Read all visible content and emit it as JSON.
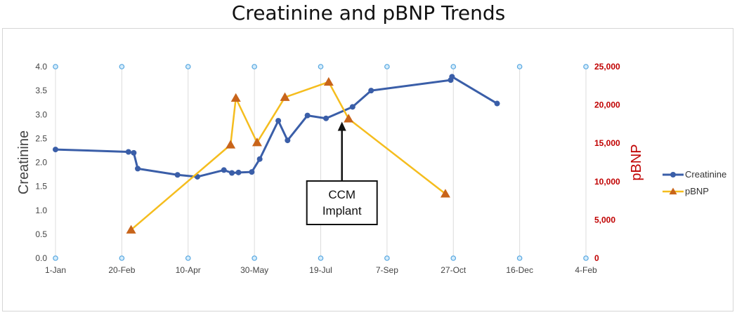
{
  "chart_data": {
    "type": "line",
    "title": "Creatinine and pBNP Trends",
    "ylabel_left": "Creatinine",
    "ylabel_right": "pBNP",
    "x_ticks": [
      "1-Jan",
      "20-Feb",
      "10-Apr",
      "30-May",
      "19-Jul",
      "7-Sep",
      "27-Oct",
      "16-Dec",
      "4-Feb"
    ],
    "xlim_days": [
      0,
      400
    ],
    "y_left_ticks": [
      "0.0",
      "0.5",
      "1.0",
      "1.5",
      "2.0",
      "2.5",
      "3.0",
      "3.5",
      "4.0"
    ],
    "ylim_left": [
      0,
      4
    ],
    "y_right_ticks": [
      "0",
      "5,000",
      "10,000",
      "15,000",
      "20,000",
      "25,000"
    ],
    "ylim_right": [
      0,
      25000
    ],
    "grid": "vertical",
    "legend_position": "right",
    "series": [
      {
        "name": "Creatinine",
        "axis": "left",
        "color": "#3a5ea8",
        "marker": "circle",
        "points": [
          {
            "x": "1-Jan",
            "y": 2.27
          },
          {
            "x": "25-Feb",
            "y": 2.22
          },
          {
            "x": "1-Mar",
            "y": 2.2
          },
          {
            "x": "4-Mar",
            "y": 1.87
          },
          {
            "x": "3-Apr",
            "y": 1.74
          },
          {
            "x": "18-Apr",
            "y": 1.7
          },
          {
            "x": "8-May",
            "y": 1.84
          },
          {
            "x": "14-May",
            "y": 1.78
          },
          {
            "x": "19-May",
            "y": 1.79
          },
          {
            "x": "29-May",
            "y": 1.8
          },
          {
            "x": "4-Jun",
            "y": 2.07
          },
          {
            "x": "18-Jun",
            "y": 2.87
          },
          {
            "x": "25-Jun",
            "y": 2.46
          },
          {
            "x": "10-Jul",
            "y": 2.98
          },
          {
            "x": "24-Jul",
            "y": 2.92
          },
          {
            "x": "13-Aug",
            "y": 3.16
          },
          {
            "x": "27-Aug",
            "y": 3.5
          },
          {
            "x": "26-Oct",
            "y": 3.72
          },
          {
            "x": "27-Oct",
            "y": 3.79
          },
          {
            "x": "30-Nov",
            "y": 3.23
          }
        ]
      },
      {
        "name": "pBNP",
        "axis": "right",
        "color": "#f5bd1e",
        "marker_color": "#c8641a",
        "marker": "triangle",
        "points": [
          {
            "x": "27-Feb",
            "y": 3700
          },
          {
            "x": "13-May",
            "y": 14800
          },
          {
            "x": "17-May",
            "y": 20900
          },
          {
            "x": "2-Jun",
            "y": 15100
          },
          {
            "x": "23-Jun",
            "y": 21000
          },
          {
            "x": "26-Jul",
            "y": 23000
          },
          {
            "x": "10-Aug",
            "y": 18200
          },
          {
            "x": "22-Oct",
            "y": 8400
          }
        ]
      }
    ],
    "annotations": [
      {
        "line1": "CCM",
        "line2": "Implant",
        "x": "5-Aug",
        "y": 2.85
      }
    ]
  }
}
